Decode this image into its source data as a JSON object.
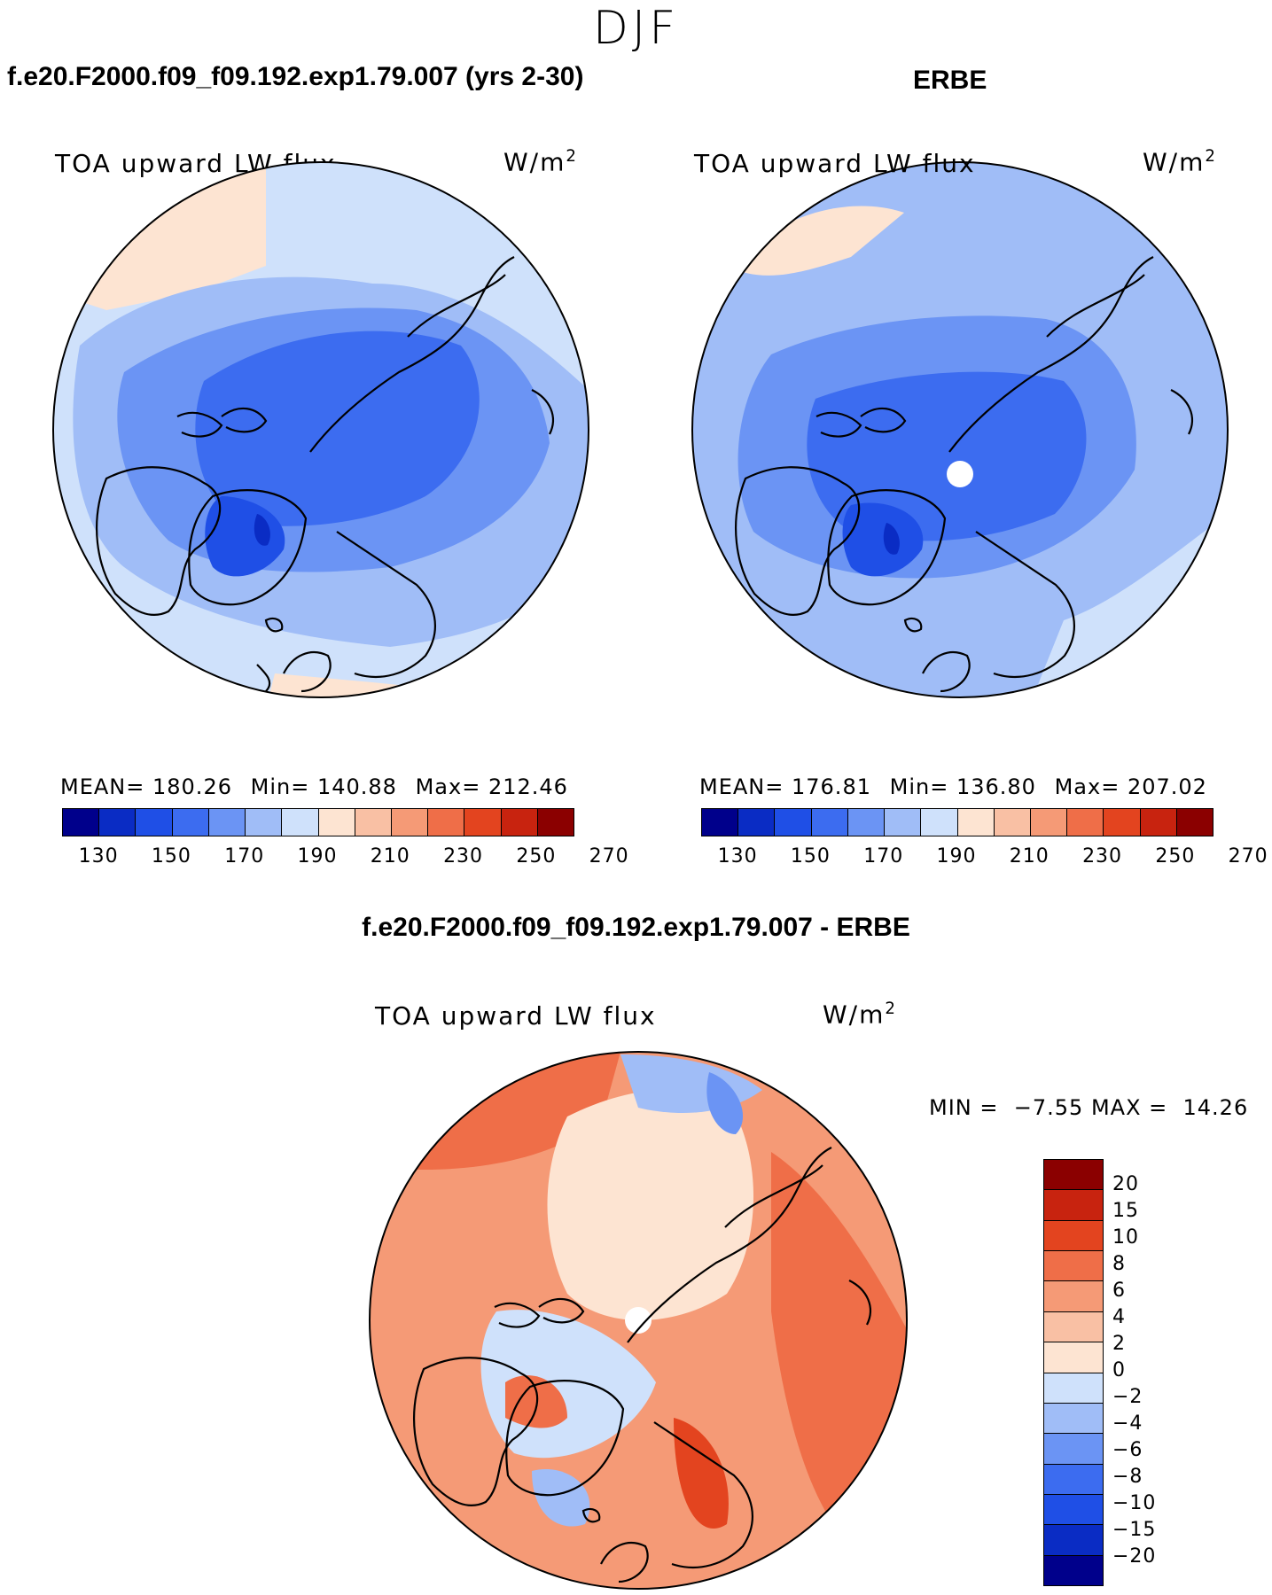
{
  "figure": {
    "season": "DJF",
    "title_model": "f.e20.F2000.f09_f09.192.exp1.79.007 (yrs 2-30)",
    "title_obs": "ERBE",
    "title_diff": "f.e20.F2000.f09_f09.192.exp1.79.007 - ERBE"
  },
  "colors": {
    "absolute_scale": [
      "#00008b",
      "#0a2cc4",
      "#1f4fe6",
      "#3c6cf0",
      "#6b94f4",
      "#a0bdf7",
      "#cfe1fb",
      "#fde4d2",
      "#f9c0a4",
      "#f59a76",
      "#ef6e48",
      "#e3441f",
      "#c8230f",
      "#8b0000"
    ],
    "diff_scale": [
      "#00008b",
      "#0a2cc4",
      "#1f4fe6",
      "#3c6cf0",
      "#6b94f4",
      "#a0bdf7",
      "#cfe1fb",
      "#fde4d2",
      "#f9c0a4",
      "#f59a76",
      "#ef6e48",
      "#e3441f",
      "#c8230f",
      "#8b0000"
    ],
    "coastline": "#000000"
  },
  "chart_data": [
    {
      "type": "heatmap",
      "panel": "model",
      "title": "f.e20.F2000.f09_f09.192.exp1.79.007 (yrs 2-30)",
      "variable": "TOA upward LW flux",
      "units_base": "W/m",
      "units_exp": "2",
      "projection": "north polar stereographic",
      "mean": "180.26",
      "min": "140.88",
      "max": "212.46",
      "mean_label": "MEAN=",
      "min_label": "Min=",
      "max_label": "Max=",
      "colorbar_ticks": [
        "130",
        "150",
        "170",
        "190",
        "210",
        "230",
        "250",
        "270"
      ]
    },
    {
      "type": "heatmap",
      "panel": "obs",
      "title": "ERBE",
      "variable": "TOA upward LW flux",
      "units_base": "W/m",
      "units_exp": "2",
      "projection": "north polar stereographic",
      "mean": "176.81",
      "min": "136.80",
      "max": "207.02",
      "mean_label": "MEAN=",
      "min_label": "Min=",
      "max_label": "Max=",
      "colorbar_ticks": [
        "130",
        "150",
        "170",
        "190",
        "210",
        "230",
        "250",
        "270"
      ]
    },
    {
      "type": "heatmap",
      "panel": "difference",
      "title": "f.e20.F2000.f09_f09.192.exp1.79.007 - ERBE",
      "variable": "TOA upward LW flux",
      "units_base": "W/m",
      "units_exp": "2",
      "projection": "north polar stereographic",
      "min_label": "MIN =",
      "min": "−7.55",
      "max_label": "MAX =",
      "max": "14.26",
      "colorbar_ticks": [
        "20",
        "15",
        "10",
        "8",
        "6",
        "4",
        "2",
        "0",
        "−2",
        "−4",
        "−6",
        "−8",
        "−10",
        "−15",
        "−20"
      ]
    }
  ]
}
